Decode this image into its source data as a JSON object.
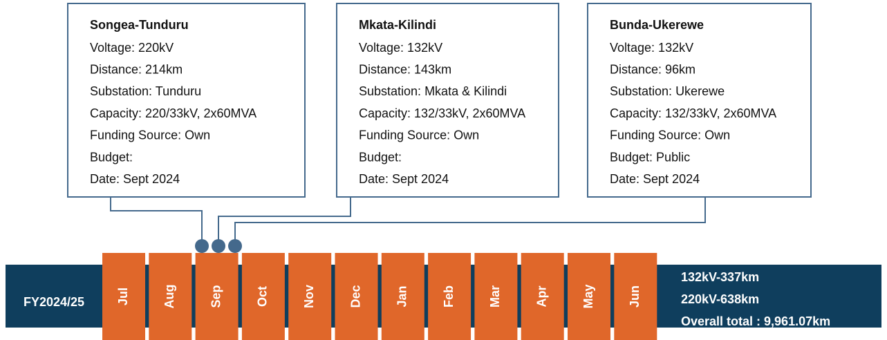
{
  "projects": [
    {
      "title": "Songea-Tunduru",
      "lines": [
        "Voltage: 220kV",
        "Distance: 214km",
        "Substation: Tunduru",
        "Capacity: 220/33kV, 2x60MVA",
        "Funding Source: Own",
        "Budget:",
        "Date: Sept 2024"
      ]
    },
    {
      "title": "Mkata-Kilindi",
      "lines": [
        "Voltage: 132kV",
        "Distance: 143km",
        "Substation: Mkata & Kilindi",
        "Capacity: 132/33kV, 2x60MVA",
        "Funding Source: Own",
        "Budget:",
        "Date: Sept 2024"
      ]
    },
    {
      "title": "Bunda-Ukerewe",
      "lines": [
        "Voltage: 132kV",
        "Distance: 96km",
        "Substation: Ukerewe",
        "Capacity: 132/33kV, 2x60MVA",
        "Funding Source: Own",
        "Budget: Public",
        "Date: Sept 2024"
      ]
    }
  ],
  "timeline": {
    "label": "FY2024/25",
    "months": [
      "Jul",
      "Aug",
      "Sep",
      "Oct",
      "Nov",
      "Dec",
      "Jan",
      "Feb",
      "Mar",
      "Apr",
      "May",
      "Jun"
    ],
    "totals": [
      "132kV-337km",
      "220kV-638km",
      "Overall total : 9,961.07km"
    ]
  }
}
